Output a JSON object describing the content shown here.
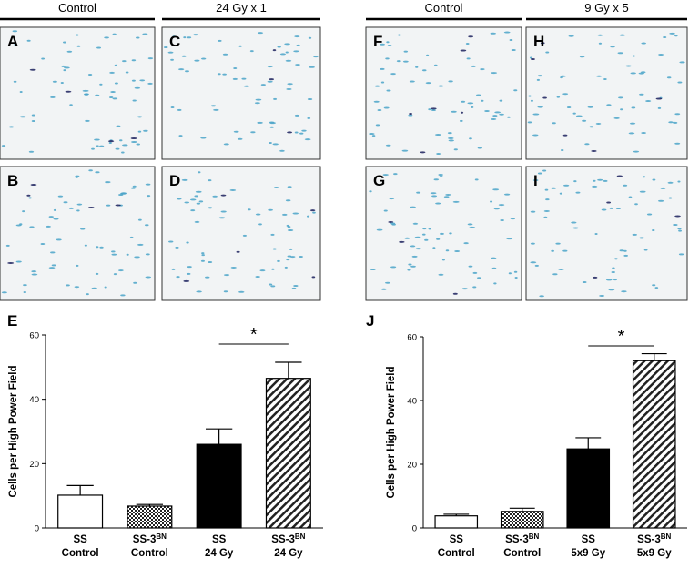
{
  "headers": [
    "Control",
    "24 Gy x 1",
    "Control",
    "9 Gy x 5"
  ],
  "panels": [
    "A",
    "C",
    "F",
    "H",
    "B",
    "D",
    "G",
    "I"
  ],
  "chart_data": [
    {
      "type": "bar",
      "panel": "E",
      "ylabel": "Cells per High Power Field",
      "categories": [
        {
          "name": "SS",
          "sub": "Control"
        },
        {
          "name": "SS-3",
          "sup": "BN",
          "sub": "Control"
        },
        {
          "name": "SS",
          "sub": "24 Gy"
        },
        {
          "name": "SS-3",
          "sup": "BN",
          "sub": "24 Gy"
        }
      ],
      "values": [
        10.2,
        6.8,
        26,
        46.5
      ],
      "errors": [
        3,
        0.5,
        4.8,
        5
      ],
      "patterns": [
        "none",
        "checker",
        "solid",
        "hatch"
      ],
      "ylim": [
        0,
        60
      ],
      "yticks": [
        0,
        20,
        40,
        60
      ],
      "significance": {
        "label": "*",
        "from": 2,
        "to": 3
      }
    },
    {
      "type": "bar",
      "panel": "J",
      "ylabel": "Cells per High Power Field",
      "categories": [
        {
          "name": "SS",
          "sub": "Control"
        },
        {
          "name": "SS-3",
          "sup": "BN",
          "sub": "Control"
        },
        {
          "name": "SS",
          "sub": "5x9 Gy"
        },
        {
          "name": "SS-3",
          "sup": "BN",
          "sub": "5x9 Gy"
        }
      ],
      "values": [
        3.8,
        5.2,
        24.8,
        52.5
      ],
      "errors": [
        0.5,
        1,
        3.5,
        2.2
      ],
      "patterns": [
        "none",
        "checker",
        "solid",
        "hatch"
      ],
      "ylim": [
        0,
        60
      ],
      "yticks": [
        0,
        20,
        40,
        60
      ],
      "significance": {
        "label": "*",
        "from": 2,
        "to": 3
      }
    }
  ]
}
